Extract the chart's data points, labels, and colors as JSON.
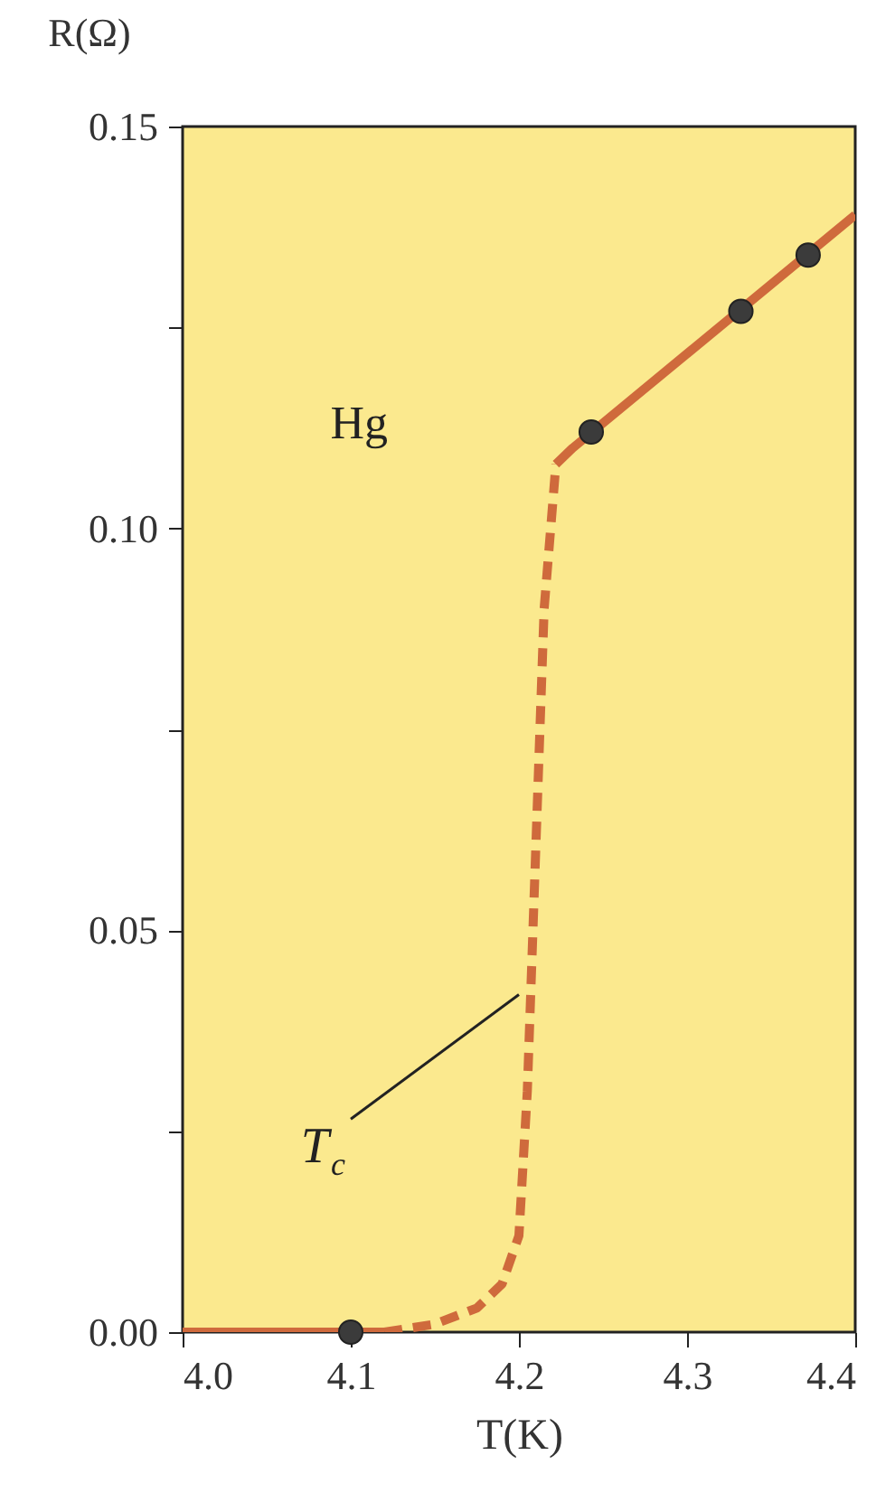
{
  "chart_data": {
    "type": "line",
    "xlabel": "T(K)",
    "ylabel": "R(Ω)",
    "xlim": [
      4.0,
      4.4
    ],
    "ylim": [
      0,
      0.15
    ],
    "xticks": [
      {
        "value": 4.0,
        "label": "4.0"
      },
      {
        "value": 4.1,
        "label": "4.1"
      },
      {
        "value": 4.2,
        "label": "4.2"
      },
      {
        "value": 4.3,
        "label": "4.3"
      },
      {
        "value": 4.4,
        "label": "4.4"
      }
    ],
    "yticks": [
      {
        "value": 0,
        "label": "0.00"
      },
      {
        "value": 0.025,
        "label": null
      },
      {
        "value": 0.05,
        "label": "0.05"
      },
      {
        "value": 0.075,
        "label": null
      },
      {
        "value": 0.1,
        "label": "0.10"
      },
      {
        "value": 0.125,
        "label": null
      },
      {
        "value": 0.15,
        "label": "0.15"
      }
    ],
    "grid": false,
    "annotations": [
      "Hg",
      {
        "text": "T$_{c}$",
        "x": 4.2,
        "y": 0.042
      }
    ],
    "series": [
      {
        "line_style": "solid",
        "color": "#cf6a3c",
        "x": [
          4.0,
          4.12
        ],
        "values": [
          0,
          0
        ]
      },
      {
        "line_style": "dashed",
        "color": "#cf6a3c",
        "x": [
          4.12,
          4.15,
          4.175,
          4.19,
          4.2,
          4.205,
          4.21,
          4.215,
          4.222
        ],
        "values": [
          0,
          0.001,
          0.003,
          0.006,
          0.012,
          0.03,
          0.06,
          0.09,
          0.108
        ]
      },
      {
        "line_style": "solid",
        "color": "#cf6a3c",
        "x": [
          4.222,
          4.232,
          4.4
        ],
        "values": [
          0.108,
          0.11,
          0.139
        ]
      },
      {
        "type": "scatter",
        "marker": "circle",
        "color": "#3b3b3b",
        "x": [
          4.1,
          4.243,
          4.332,
          4.372
        ],
        "values": [
          0,
          0.112,
          0.127,
          0.134
        ]
      }
    ]
  }
}
